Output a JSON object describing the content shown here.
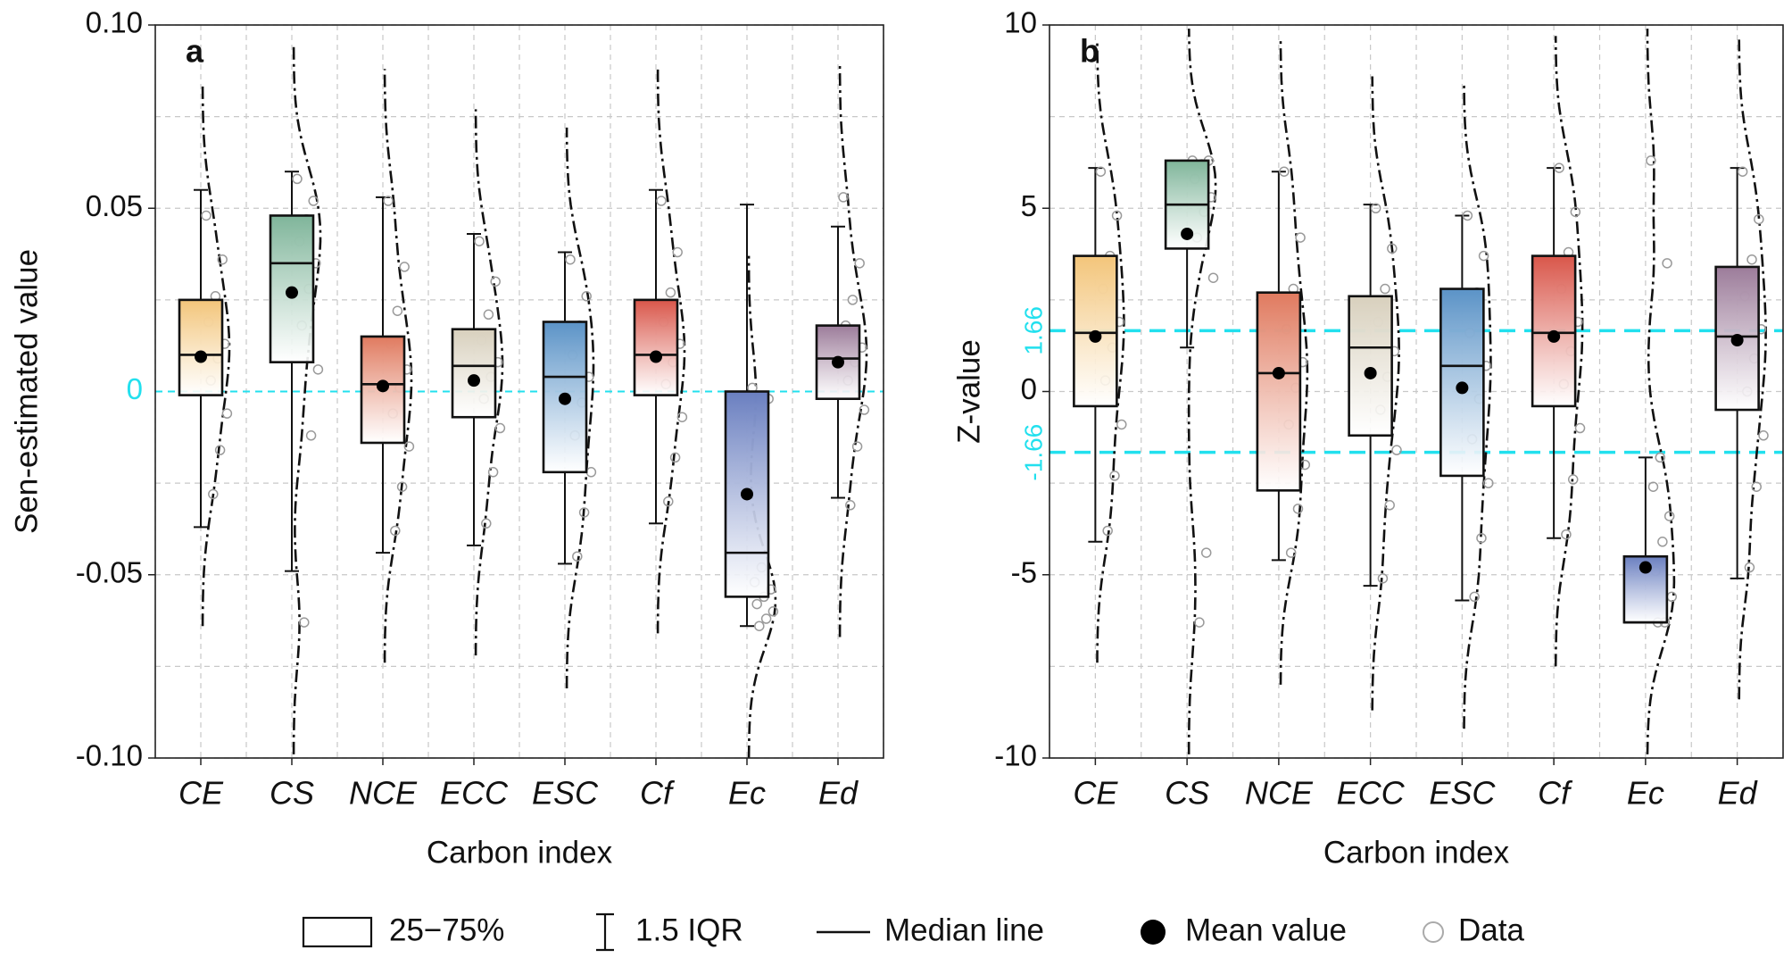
{
  "chart_data": [
    {
      "type": "box",
      "title": "a",
      "x_label": "Carbon index",
      "y_label": "Sen-estimated value",
      "categories": [
        "CE",
        "CS",
        "NCE",
        "ECC",
        "ESC",
        "Cf",
        "Ec",
        "Ed"
      ],
      "ylim": [
        -0.1,
        0.1
      ],
      "yticks": [
        {
          "value": 0.1,
          "label": "0.10"
        },
        0.05,
        -0.05,
        {
          "value": -0.1,
          "label": "-0.10"
        }
      ],
      "minor_yticks": [
        0.075,
        0.025,
        -0.025,
        -0.075
      ],
      "ref_lines": [
        0
      ],
      "ref_color": "#22e0ee",
      "grid": true,
      "boxes": [
        {
          "color": "#f3c57a",
          "high": 0.055,
          "q3": 0.025,
          "median": 0.01,
          "q1": -0.001,
          "low": -0.037,
          "mean": 0.0095,
          "points": [
            0.048,
            0.036,
            0.026,
            0.019,
            0.013,
            0.009,
            0.003,
            -0.006,
            -0.016,
            -0.028
          ]
        },
        {
          "color": "#7fb59a",
          "high": 0.06,
          "q3": 0.048,
          "median": 0.035,
          "q1": 0.008,
          "low": -0.049,
          "mean": 0.027,
          "points": [
            0.058,
            0.052,
            0.047,
            0.041,
            0.035,
            0.028,
            0.018,
            0.006,
            -0.012,
            -0.063
          ]
        },
        {
          "color": "#e07a5f",
          "high": 0.053,
          "q3": 0.015,
          "median": 0.002,
          "q1": -0.014,
          "low": -0.044,
          "mean": 0.0015,
          "points": [
            0.052,
            0.034,
            0.022,
            0.013,
            0.006,
            0.001,
            -0.006,
            -0.015,
            -0.026,
            -0.038
          ]
        },
        {
          "color": "#d8d0bd",
          "high": 0.043,
          "q3": 0.017,
          "median": 0.007,
          "q1": -0.007,
          "low": -0.042,
          "mean": 0.003,
          "points": [
            0.041,
            0.03,
            0.021,
            0.014,
            0.008,
            0.004,
            -0.002,
            -0.01,
            -0.022,
            -0.036
          ]
        },
        {
          "color": "#5b93c7",
          "high": 0.038,
          "q3": 0.019,
          "median": 0.004,
          "q1": -0.022,
          "low": -0.047,
          "mean": -0.002,
          "points": [
            0.036,
            0.026,
            0.018,
            0.01,
            0.004,
            -0.003,
            -0.012,
            -0.022,
            -0.033,
            -0.045
          ]
        },
        {
          "color": "#d9564a",
          "high": 0.055,
          "q3": 0.025,
          "median": 0.01,
          "q1": -0.001,
          "low": -0.036,
          "mean": 0.0095,
          "points": [
            0.052,
            0.038,
            0.027,
            0.019,
            0.013,
            0.008,
            0.002,
            -0.007,
            -0.018,
            -0.03
          ]
        },
        {
          "color": "#6a7fc0",
          "high": 0.051,
          "q3": 0.0,
          "median": -0.044,
          "q1": -0.056,
          "low": -0.064,
          "mean": -0.028,
          "points": [
            0.001,
            -0.002,
            -0.048,
            -0.052,
            -0.054,
            -0.056,
            -0.058,
            -0.06,
            -0.062,
            -0.064
          ]
        },
        {
          "color": "#9c7c9a",
          "high": 0.045,
          "q3": 0.018,
          "median": 0.009,
          "q1": -0.002,
          "low": -0.029,
          "mean": 0.008,
          "points": [
            0.053,
            0.035,
            0.025,
            0.018,
            0.012,
            0.008,
            0.003,
            -0.005,
            -0.015,
            -0.031
          ]
        }
      ]
    },
    {
      "type": "box",
      "title": "b",
      "x_label": "Carbon index",
      "y_label": "Z-value",
      "categories": [
        "CE",
        "CS",
        "NCE",
        "ECC",
        "ESC",
        "Cf",
        "Ec",
        "Ed"
      ],
      "ylim": [
        -10,
        10
      ],
      "yticks": [
        10,
        5,
        0,
        -5,
        -10
      ],
      "minor_yticks": [
        7.5,
        2.5,
        -2.5,
        -7.5
      ],
      "ref_lines": [
        1.66,
        -1.66
      ],
      "ref_color": "#22e0ee",
      "grid": true,
      "boxes": [
        {
          "color": "#f3c57a",
          "high": 6.1,
          "q3": 3.7,
          "median": 1.6,
          "q1": -0.4,
          "low": -4.1,
          "mean": 1.5,
          "points": [
            6.0,
            4.8,
            3.7,
            2.8,
            1.9,
            1.2,
            0.3,
            -0.9,
            -2.3,
            -3.8
          ]
        },
        {
          "color": "#7fb59a",
          "high": 6.3,
          "q3": 6.3,
          "median": 5.1,
          "q1": 3.9,
          "low": 1.2,
          "mean": 4.3,
          "points": [
            6.3,
            6.3,
            6.2,
            5.8,
            5.3,
            4.9,
            4.2,
            3.1,
            -4.4,
            -6.3
          ]
        },
        {
          "color": "#e07a5f",
          "high": 6.0,
          "q3": 2.7,
          "median": 0.5,
          "q1": -2.7,
          "low": -4.6,
          "mean": 0.5,
          "points": [
            6.0,
            4.2,
            2.8,
            1.7,
            0.8,
            0.1,
            -0.9,
            -2.0,
            -3.2,
            -4.4
          ]
        },
        {
          "color": "#d8d0bd",
          "high": 5.1,
          "q3": 2.6,
          "median": 1.2,
          "q1": -1.2,
          "low": -5.3,
          "mean": 0.5,
          "points": [
            5.0,
            3.9,
            2.8,
            1.9,
            1.1,
            0.4,
            -0.5,
            -1.6,
            -3.1,
            -5.1
          ]
        },
        {
          "color": "#5b93c7",
          "high": 4.8,
          "q3": 2.8,
          "median": 0.7,
          "q1": -2.3,
          "low": -5.7,
          "mean": 0.1,
          "points": [
            4.8,
            3.7,
            2.7,
            1.6,
            0.7,
            -0.2,
            -1.3,
            -2.5,
            -4.0,
            -5.6
          ]
        },
        {
          "color": "#d9564a",
          "high": 6.1,
          "q3": 3.7,
          "median": 1.6,
          "q1": -0.4,
          "low": -4.0,
          "mean": 1.5,
          "points": [
            6.1,
            4.9,
            3.8,
            2.8,
            1.9,
            1.1,
            0.2,
            -1.0,
            -2.4,
            -3.9
          ]
        },
        {
          "color": "#6a7fc0",
          "high": -1.8,
          "q3": -4.5,
          "median": -6.3,
          "q1": -6.3,
          "low": -6.3,
          "mean": -4.8,
          "points": [
            6.3,
            3.5,
            -1.8,
            -2.6,
            -3.4,
            -4.1,
            -4.9,
            -5.6,
            -6.3,
            -6.3
          ]
        },
        {
          "color": "#9c7c9a",
          "high": 6.1,
          "q3": 3.4,
          "median": 1.5,
          "q1": -0.5,
          "low": -5.1,
          "mean": 1.4,
          "points": [
            6.0,
            4.7,
            3.6,
            2.6,
            1.7,
            0.9,
            0.0,
            -1.2,
            -2.6,
            -4.8
          ]
        }
      ]
    }
  ],
  "legend": [
    "25−75%",
    "1.5 IQR",
    "Median line",
    "Mean value",
    "Data"
  ]
}
